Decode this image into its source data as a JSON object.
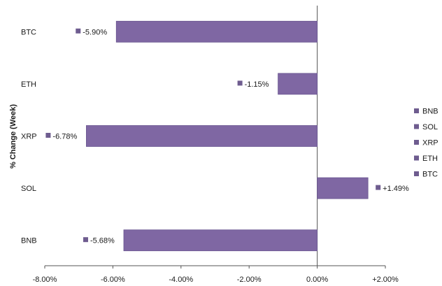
{
  "chart_data": {
    "type": "bar",
    "orientation": "horizontal",
    "title": "",
    "xlabel": "",
    "ylabel": "% Change (Week)",
    "categories": [
      "BTC",
      "ETH",
      "XRP",
      "SOL",
      "BNB"
    ],
    "values": [
      -5.9,
      -1.15,
      -6.78,
      1.49,
      -5.68
    ],
    "data_labels": [
      "-5.90%",
      "-1.15%",
      "-6.78%",
      "+1.49%",
      "-5.68%"
    ],
    "xlim": [
      -8,
      2
    ],
    "xticks": [
      -8,
      -6,
      -4,
      -2,
      0,
      2
    ],
    "xtick_labels": [
      "-8.00%",
      "-6.00%",
      "-4.00%",
      "-2.00%",
      "0.00%",
      "+2.00%"
    ],
    "grid": false,
    "legend": {
      "position": "right",
      "entries": [
        "BNB",
        "SOL",
        "XRP",
        "ETH",
        "BTC"
      ]
    },
    "colors": {
      "bar": "#7F67A3",
      "bar_stroke": "#6a5690",
      "marker": "#6E5C8F",
      "axis": "#555555"
    }
  }
}
